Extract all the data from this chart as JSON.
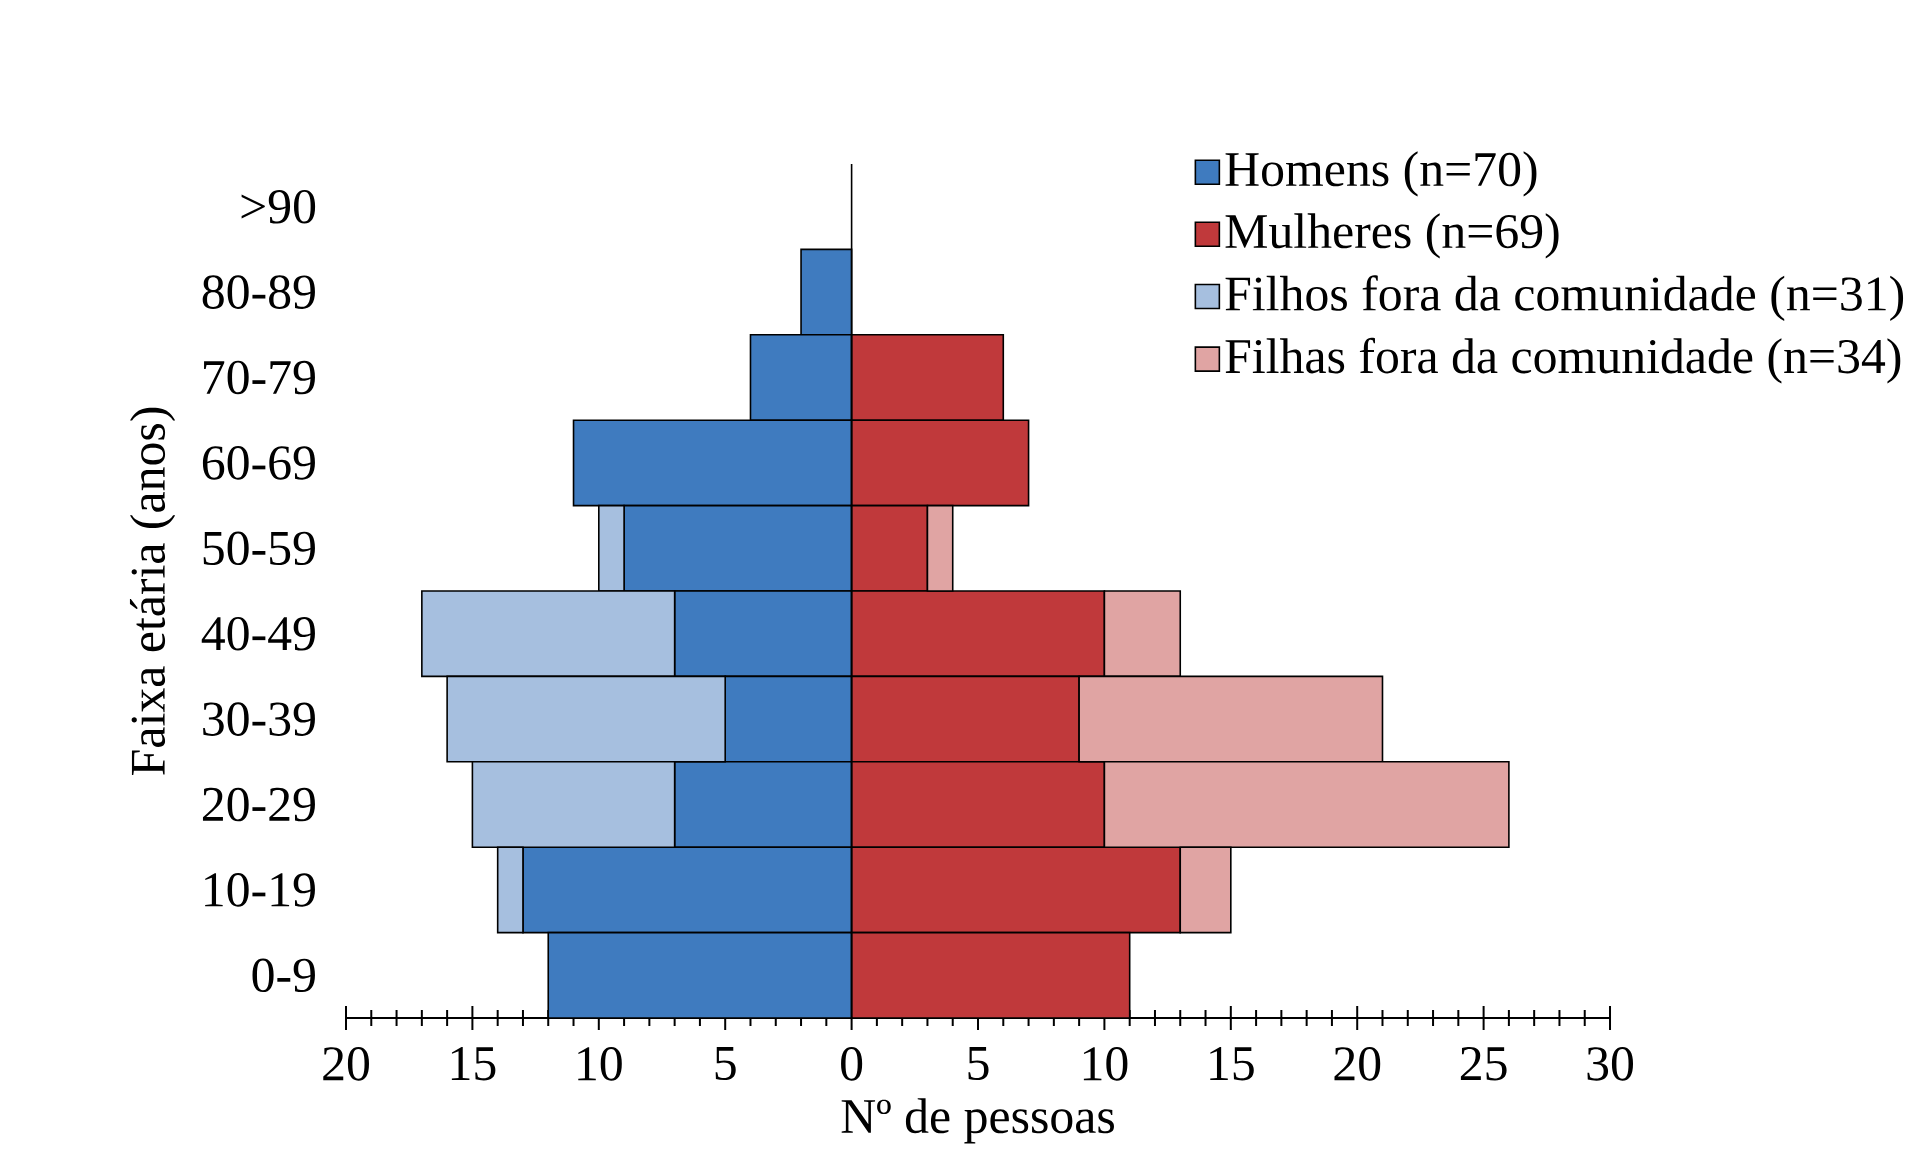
{
  "chart_data": {
    "type": "bar",
    "orientation": "horizontal",
    "stacked": true,
    "xlabel": "Nº de pessoas",
    "ylabel": "Faixa etária (anos)",
    "categories": [
      ">90",
      "80-89",
      "70-79",
      "60-69",
      "50-59",
      "40-49",
      "30-39",
      "20-29",
      "10-19",
      "0-9"
    ],
    "series": [
      {
        "name": "Homens (n=70)",
        "color": "#3f7bbf",
        "values": [
          0,
          -2,
          -4,
          -11,
          -9,
          -7,
          -5,
          -7,
          -13,
          -12
        ]
      },
      {
        "name": "Mulheres (n=69)",
        "color": "#c0393b",
        "values": [
          0,
          0,
          6,
          7,
          3,
          10,
          9,
          10,
          13,
          11
        ]
      },
      {
        "name": "Filhos fora da comunidade (n=31)",
        "color": "#a6bfdf",
        "values": [
          0,
          0,
          0,
          0,
          -1,
          -10,
          -11,
          -8,
          -1,
          0
        ]
      },
      {
        "name": "Filhas fora da comunidade (n=34)",
        "color": "#e0a4a3",
        "values": [
          0,
          0,
          0,
          0,
          1,
          3,
          12,
          16,
          2,
          0
        ]
      }
    ],
    "xlim": [
      -20,
      30
    ],
    "xticks": [
      {
        "value": -20,
        "label": "20"
      },
      {
        "value": -15,
        "label": "15"
      },
      {
        "value": -10,
        "label": "10"
      },
      {
        "value": -5,
        "label": "5"
      },
      0,
      5,
      10,
      15,
      20,
      25,
      30
    ],
    "ref_lines": [
      {
        "axis": "x",
        "value": 0
      }
    ],
    "legend": "top right",
    "grid": false
  }
}
